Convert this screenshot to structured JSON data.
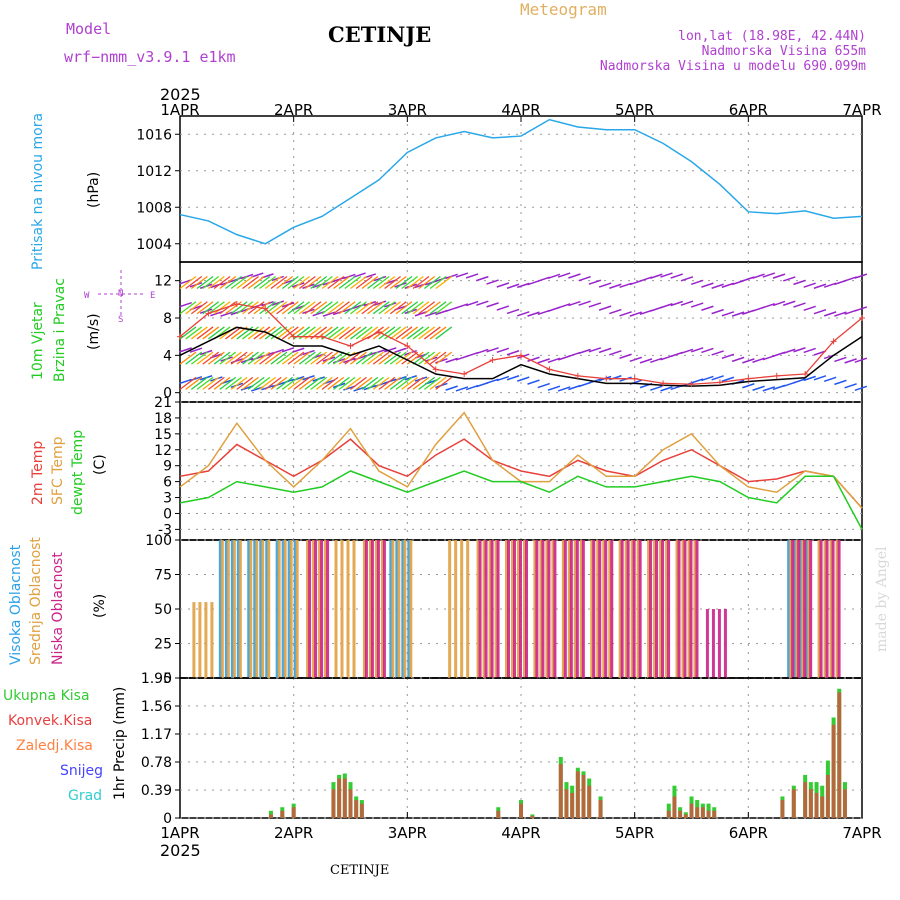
{
  "header": {
    "model_label": "Model",
    "model_name": "wrf−nmm_v3.9.1  e1km",
    "station": "CETINJE",
    "title": "Meteogram",
    "lonlat": "lon,lat (18.98E, 42.44N)",
    "altitude": "Nadmorska Visina 655m",
    "model_altitude": "Nadmorska Visina u modelu 690.099m",
    "watermark": "made by Angel",
    "footer_station": "CETINJE"
  },
  "time_axis": {
    "year": "2025",
    "ticks": [
      "1APR",
      "2APR",
      "3APR",
      "4APR",
      "5APR",
      "6APR",
      "7APR"
    ]
  },
  "colors": {
    "pressure": "#2aa7e8",
    "wind_speed": "#000000",
    "wind_gust": "#e8403a",
    "temp2m": "#e8403a",
    "sfc_temp": "#e0a040",
    "dewpt": "#22cc22",
    "cloud_high": "#2aa0e8",
    "cloud_mid": "#e0a040",
    "cloud_low": "#cc2288",
    "precip_total": "#33cc33",
    "precip_conv": "#e84040",
    "precip_frozen": "#ff8040",
    "precip_snow": "#4444ff",
    "precip_hail": "#33cccc",
    "label_purple": "#b040d0"
  },
  "chart_data": [
    {
      "type": "line",
      "title": "Pritisak na nivou mora",
      "ylabel": "(hPa)",
      "ylim": [
        1002,
        1018
      ],
      "yticks": [
        1004,
        1008,
        1012,
        1016
      ],
      "x": [
        0,
        0.25,
        0.5,
        0.75,
        1,
        1.25,
        1.5,
        1.75,
        2,
        2.25,
        2.5,
        2.75,
        3,
        3.25,
        3.5,
        3.75,
        4,
        4.25,
        4.5,
        4.75,
        5,
        5.25,
        5.5,
        5.75,
        6
      ],
      "series": [
        {
          "name": "Pritisak na nivou mora",
          "values": [
            1007.2,
            1006.5,
            1005,
            1004,
            1005.8,
            1007,
            1009,
            1011,
            1014,
            1015.6,
            1016.3,
            1015.6,
            1015.8,
            1017.6,
            1016.8,
            1016.5,
            1016.5,
            1015,
            1013,
            1010.5,
            1007.5,
            1007.3,
            1007.6,
            1006.8,
            1007
          ]
        }
      ]
    },
    {
      "type": "line",
      "title": "10m Vjetar Brzina i Pravac",
      "ylabel": "(m/s)",
      "ylim": [
        -1,
        14
      ],
      "yticks": [
        0,
        4,
        8,
        12
      ],
      "direction_legend": [
        "N",
        "E",
        "S",
        "W"
      ],
      "x": [
        0,
        0.25,
        0.5,
        0.75,
        1,
        1.25,
        1.5,
        1.75,
        2,
        2.25,
        2.5,
        2.75,
        3,
        3.25,
        3.5,
        3.75,
        4,
        4.25,
        4.5,
        4.75,
        5,
        5.25,
        5.5,
        5.75,
        6
      ],
      "series": [
        {
          "name": "speed",
          "values": [
            4,
            5.5,
            7,
            6.5,
            5,
            5,
            4,
            5,
            3.5,
            2,
            1.5,
            1.5,
            3,
            2,
            1.5,
            1,
            1,
            0.8,
            0.7,
            0.8,
            1.2,
            1.4,
            1.6,
            4,
            6
          ]
        },
        {
          "name": "gust",
          "values": [
            6,
            8.5,
            9.5,
            9,
            6,
            6,
            5,
            6.5,
            5,
            2.5,
            2,
            3.5,
            4,
            2.5,
            1.8,
            1.5,
            1.5,
            1,
            0.9,
            1.1,
            1.5,
            1.8,
            2,
            5.5,
            8
          ]
        }
      ]
    },
    {
      "type": "line",
      "title": "2m Temp / SFC Temp / dewpt Temp",
      "ylabel": "(C)",
      "ylim": [
        -5,
        21
      ],
      "yticks": [
        -3,
        0,
        3,
        6,
        9,
        12,
        15,
        18,
        21
      ],
      "x": [
        0,
        0.25,
        0.5,
        0.75,
        1,
        1.25,
        1.5,
        1.75,
        2,
        2.25,
        2.5,
        2.75,
        3,
        3.25,
        3.5,
        3.75,
        4,
        4.25,
        4.5,
        4.75,
        5,
        5.25,
        5.5,
        5.75,
        6
      ],
      "series": [
        {
          "name": "2m Temp",
          "values": [
            7,
            8,
            13,
            10,
            7,
            10,
            14,
            9,
            7,
            11,
            14,
            10,
            8,
            7,
            10,
            8,
            7,
            10,
            12,
            9,
            6,
            6.5,
            8,
            7,
            1
          ]
        },
        {
          "name": "SFC Temp",
          "values": [
            5,
            9,
            17,
            10,
            5,
            10,
            16,
            8,
            5,
            13,
            19,
            10,
            6,
            6,
            11,
            7,
            7,
            12,
            15,
            9,
            5,
            4,
            8,
            7,
            1
          ]
        },
        {
          "name": "dewpt Temp",
          "values": [
            2,
            3,
            6,
            5,
            4,
            5,
            8,
            6,
            4,
            6,
            8,
            6,
            6,
            4,
            7,
            5,
            5,
            6,
            7,
            6,
            3,
            2,
            7,
            7,
            -3
          ]
        }
      ]
    },
    {
      "type": "bar",
      "title": "Visoka Oblacnost / Srednja Oblacnost / Niska Oblacnost",
      "ylabel": "(%)",
      "ylim": [
        0,
        100
      ],
      "yticks": [
        0,
        25,
        50,
        75,
        100
      ],
      "x": [
        0.25,
        0.5,
        0.75,
        1,
        1.25,
        1.5,
        1.75,
        2,
        2.25,
        2.5,
        2.75,
        3,
        3.25,
        3.5,
        3.75,
        4,
        4.25,
        4.5,
        4.75,
        5,
        5.25,
        5.5,
        5.75
      ],
      "series": [
        {
          "name": "Visoka Oblacnost",
          "values": [
            0,
            100,
            100,
            100,
            0,
            0,
            0,
            100,
            0,
            0,
            0,
            0,
            0,
            0,
            0,
            0,
            0,
            0,
            0,
            0,
            0,
            100,
            0
          ]
        },
        {
          "name": "Srednja Oblacnost",
          "values": [
            55,
            100,
            100,
            100,
            100,
            100,
            100,
            100,
            0,
            100,
            100,
            100,
            100,
            100,
            100,
            100,
            100,
            100,
            0,
            0,
            0,
            100,
            100
          ]
        },
        {
          "name": "Niska Oblacnost",
          "values": [
            0,
            0,
            0,
            0,
            100,
            0,
            100,
            0,
            0,
            0,
            100,
            100,
            100,
            100,
            100,
            100,
            100,
            100,
            50,
            0,
            0,
            100,
            100
          ]
        }
      ]
    },
    {
      "type": "bar",
      "title": "1hr Precip",
      "ylabel": "1hr Precip (mm)",
      "ylim": [
        0,
        1.95
      ],
      "yticks": [
        0,
        0.39,
        0.78,
        1.17,
        1.56,
        1.95
      ],
      "legend": [
        "Ukupna Kisa",
        "Konvek.Kisa",
        "Zaledj.Kisa",
        "Snijeg",
        "Grad"
      ],
      "x": [
        0.8,
        0.9,
        1.0,
        1.35,
        1.4,
        1.45,
        1.5,
        1.55,
        1.6,
        2.8,
        3.0,
        3.1,
        3.35,
        3.4,
        3.45,
        3.5,
        3.55,
        3.6,
        3.7,
        4.3,
        4.35,
        4.4,
        4.45,
        4.5,
        4.55,
        4.6,
        4.65,
        4.7,
        5.3,
        5.4,
        5.5,
        5.55,
        5.6,
        5.65,
        5.7,
        5.75,
        5.8,
        5.85
      ],
      "series": [
        {
          "name": "Ukupna Kisa",
          "values": [
            0.1,
            0.15,
            0.2,
            0.5,
            0.6,
            0.62,
            0.5,
            0.3,
            0.25,
            0.15,
            0.25,
            0.05,
            0.85,
            0.5,
            0.45,
            0.7,
            0.65,
            0.55,
            0.3,
            0.2,
            0.45,
            0.15,
            0.08,
            0.3,
            0.25,
            0.2,
            0.2,
            0.15,
            0.3,
            0.45,
            0.6,
            0.5,
            0.5,
            0.45,
            0.8,
            1.4,
            1.8,
            0.5
          ]
        },
        {
          "name": "Konvek.Kisa",
          "values": [
            0.05,
            0.1,
            0.15,
            0.4,
            0.55,
            0.55,
            0.4,
            0.25,
            0.2,
            0.1,
            0.2,
            0.03,
            0.75,
            0.4,
            0.35,
            0.65,
            0.6,
            0.45,
            0.25,
            0.1,
            0.3,
            0.1,
            0.05,
            0.2,
            0.15,
            0.15,
            0.1,
            0.1,
            0.25,
            0.4,
            0.5,
            0.4,
            0.35,
            0.3,
            0.6,
            1.3,
            1.75,
            0.4
          ]
        }
      ]
    }
  ]
}
